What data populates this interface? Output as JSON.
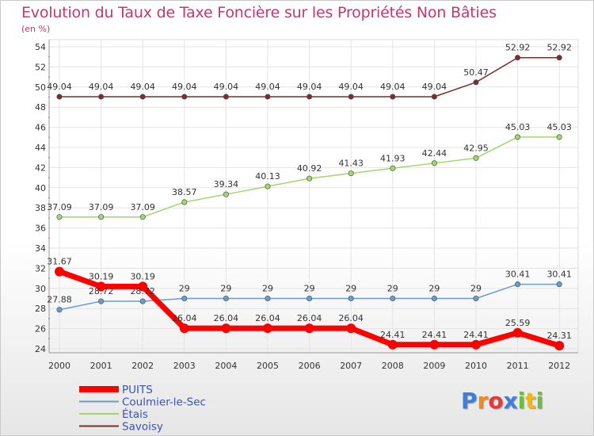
{
  "chart_data": {
    "type": "line",
    "title": "Evolution du Taux de Taxe Foncière sur les Propriétés Non Bâties",
    "subtitle": "(en %)",
    "x": [
      "2000",
      "2001",
      "2002",
      "2003",
      "2004",
      "2005",
      "2006",
      "2007",
      "2008",
      "2009",
      "2010",
      "2011",
      "2012"
    ],
    "ylim": [
      24,
      54
    ],
    "yticks": [
      24,
      26,
      28,
      30,
      32,
      34,
      36,
      38,
      40,
      42,
      44,
      46,
      48,
      50,
      52,
      54
    ],
    "grid": true,
    "legend_position": "bottom-left",
    "series": [
      {
        "name": "PUITS",
        "color": "#ff0000",
        "values": [
          31.67,
          30.19,
          30.19,
          26.04,
          26.04,
          26.04,
          26.04,
          26.04,
          24.41,
          24.41,
          24.41,
          25.59,
          24.31
        ],
        "labels": [
          "31.67",
          "30.19",
          "30.19",
          "26.04",
          "26.04",
          "26.04",
          "26.04",
          "26.04",
          "24.41",
          "24.41",
          "24.41",
          "25.59",
          "24.31"
        ]
      },
      {
        "name": "Coulmier-le-Sec",
        "color": "#6a9ccf",
        "values": [
          27.88,
          28.72,
          28.72,
          29,
          29,
          29,
          29,
          29,
          29,
          29,
          29,
          30.41,
          30.41
        ],
        "labels": [
          "27.88",
          "28.72",
          "28.72",
          "29",
          "29",
          "29",
          "29",
          "29",
          "29",
          "29",
          "29",
          "30.41",
          "30.41"
        ]
      },
      {
        "name": "Étais",
        "color": "#9fd86a",
        "values": [
          37.09,
          37.09,
          37.09,
          38.57,
          39.34,
          40.13,
          40.92,
          41.43,
          41.93,
          42.44,
          42.95,
          45.03,
          45.03
        ],
        "labels": [
          "37.09",
          "37.09",
          "37.09",
          "38.57",
          "39.34",
          "40.13",
          "40.92",
          "41.43",
          "41.93",
          "42.44",
          "42.95",
          "45.03",
          "45.03"
        ]
      },
      {
        "name": "Savoisy",
        "color": "#7b2d2d",
        "values": [
          49.04,
          49.04,
          49.04,
          49.04,
          49.04,
          49.04,
          49.04,
          49.04,
          49.04,
          49.04,
          50.47,
          52.92,
          52.92
        ],
        "labels": [
          "49.04",
          "49.04",
          "49.04",
          "49.04",
          "49.04",
          "49.04",
          "49.04",
          "49.04",
          "49.04",
          "49.04",
          "50.47",
          "52.92",
          "52.92"
        ]
      }
    ]
  },
  "logo": {
    "text": "Proxiti",
    "colors": [
      "#3f7fd9",
      "#f08c1e",
      "#e23b3b",
      "#3f7fd9",
      "#6bbf3c",
      "#f0b81e",
      "#6bbf3c"
    ]
  }
}
